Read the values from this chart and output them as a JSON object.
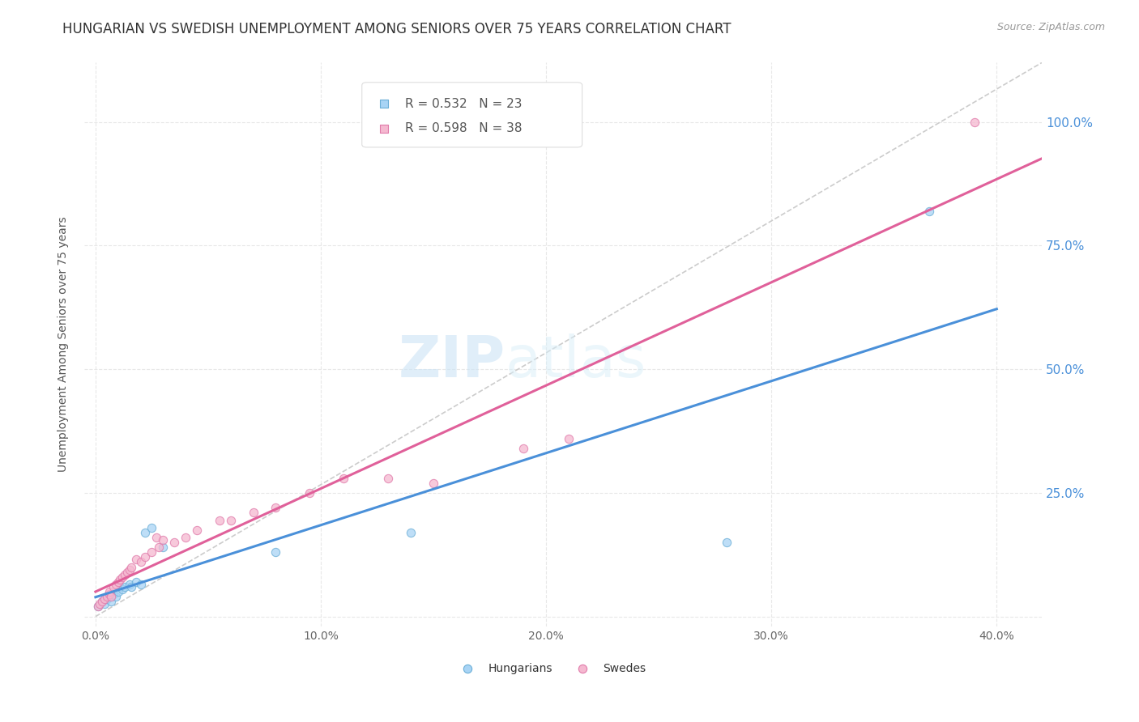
{
  "title": "HUNGARIAN VS SWEDISH UNEMPLOYMENT AMONG SENIORS OVER 75 YEARS CORRELATION CHART",
  "source": "Source: ZipAtlas.com",
  "ylabel": "Unemployment Among Seniors over 75 years",
  "xlim": [
    -0.005,
    0.42
  ],
  "ylim": [
    -0.02,
    1.12
  ],
  "xticks": [
    0.0,
    0.1,
    0.2,
    0.3,
    0.4
  ],
  "xticklabels": [
    "0.0%",
    "10.0%",
    "20.0%",
    "30.0%",
    "40.0%"
  ],
  "yticks": [
    0.0,
    0.25,
    0.5,
    0.75,
    1.0
  ],
  "yticklabels": [
    "",
    "25.0%",
    "50.0%",
    "75.0%",
    "100.0%"
  ],
  "watermark_zip": "ZIP",
  "watermark_atlas": "atlas",
  "legend_r1": "R = 0.532",
  "legend_n1": "N = 23",
  "legend_r2": "R = 0.598",
  "legend_n2": "N = 38",
  "hungarian_color": "#a8d4f5",
  "swedish_color": "#f5b8d0",
  "hungarian_edge": "#6aaed6",
  "swedish_edge": "#e07aaa",
  "line_hungarian_color": "#4a90d9",
  "line_swedish_color": "#e0609a",
  "diag_color": "#cccccc",
  "hungarian_x": [
    0.001,
    0.003,
    0.004,
    0.005,
    0.006,
    0.007,
    0.008,
    0.009,
    0.01,
    0.011,
    0.012,
    0.013,
    0.015,
    0.016,
    0.018,
    0.02,
    0.022,
    0.025,
    0.03,
    0.08,
    0.14,
    0.28,
    0.37
  ],
  "hungarian_y": [
    0.02,
    0.03,
    0.025,
    0.035,
    0.04,
    0.03,
    0.045,
    0.04,
    0.05,
    0.06,
    0.055,
    0.06,
    0.065,
    0.06,
    0.07,
    0.065,
    0.17,
    0.18,
    0.14,
    0.13,
    0.17,
    0.15,
    0.82
  ],
  "swedish_x": [
    0.001,
    0.002,
    0.003,
    0.004,
    0.005,
    0.006,
    0.006,
    0.007,
    0.008,
    0.009,
    0.01,
    0.011,
    0.012,
    0.013,
    0.014,
    0.015,
    0.016,
    0.018,
    0.02,
    0.022,
    0.025,
    0.027,
    0.028,
    0.03,
    0.035,
    0.04,
    0.045,
    0.055,
    0.06,
    0.07,
    0.08,
    0.095,
    0.11,
    0.13,
    0.15,
    0.19,
    0.21,
    0.39
  ],
  "swedish_y": [
    0.02,
    0.025,
    0.03,
    0.035,
    0.04,
    0.045,
    0.05,
    0.04,
    0.06,
    0.065,
    0.07,
    0.075,
    0.08,
    0.085,
    0.09,
    0.095,
    0.1,
    0.115,
    0.11,
    0.12,
    0.13,
    0.16,
    0.14,
    0.155,
    0.15,
    0.16,
    0.175,
    0.195,
    0.195,
    0.21,
    0.22,
    0.25,
    0.28,
    0.28,
    0.27,
    0.34,
    0.36,
    1.0
  ],
  "background_color": "#ffffff",
  "grid_color": "#e8e8e8",
  "title_fontsize": 12,
  "axis_fontsize": 10,
  "tick_fontsize": 10,
  "marker_size": 55,
  "marker_alpha": 0.75
}
